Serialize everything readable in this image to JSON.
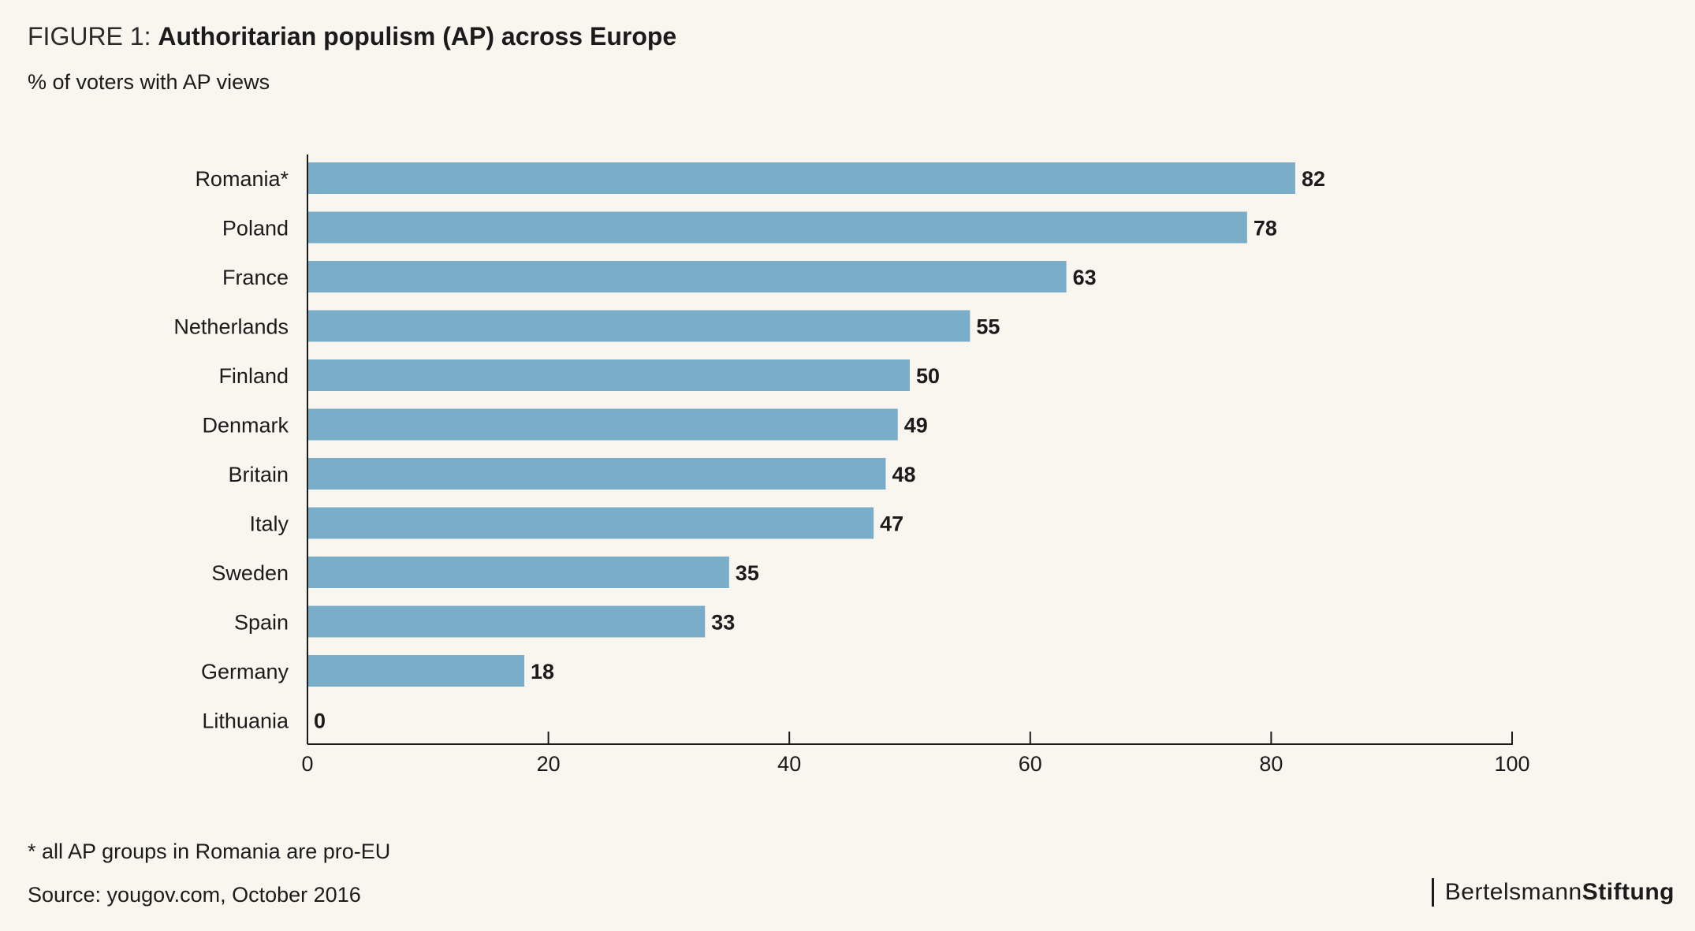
{
  "header": {
    "figure_label": "FIGURE 1:",
    "title": "Authoritarian populism (AP) across Europe",
    "subtitle": "% of voters with AP views"
  },
  "footer": {
    "footnote": "* all AP groups in Romania are pro-EU",
    "source": "Source: yougov.com, October 2016",
    "logo_part1": "Bertelsmann",
    "logo_part2": "Stiftung"
  },
  "colors": {
    "bar": "#7aaec8",
    "axis": "#1b1b1b",
    "background": "#f8f6ef"
  },
  "chart_data": {
    "type": "bar",
    "orientation": "horizontal",
    "categories": [
      "Romania*",
      "Poland",
      "France",
      "Netherlands",
      "Finland",
      "Denmark",
      "Britain",
      "Italy",
      "Sweden",
      "Spain",
      "Germany",
      "Lithuania"
    ],
    "values": [
      82,
      78,
      63,
      55,
      50,
      49,
      48,
      47,
      35,
      33,
      18,
      0
    ],
    "xlim": [
      0,
      100
    ],
    "xticks": [
      0,
      20,
      40,
      60,
      80,
      100
    ],
    "grid": false,
    "data_labels": true
  }
}
